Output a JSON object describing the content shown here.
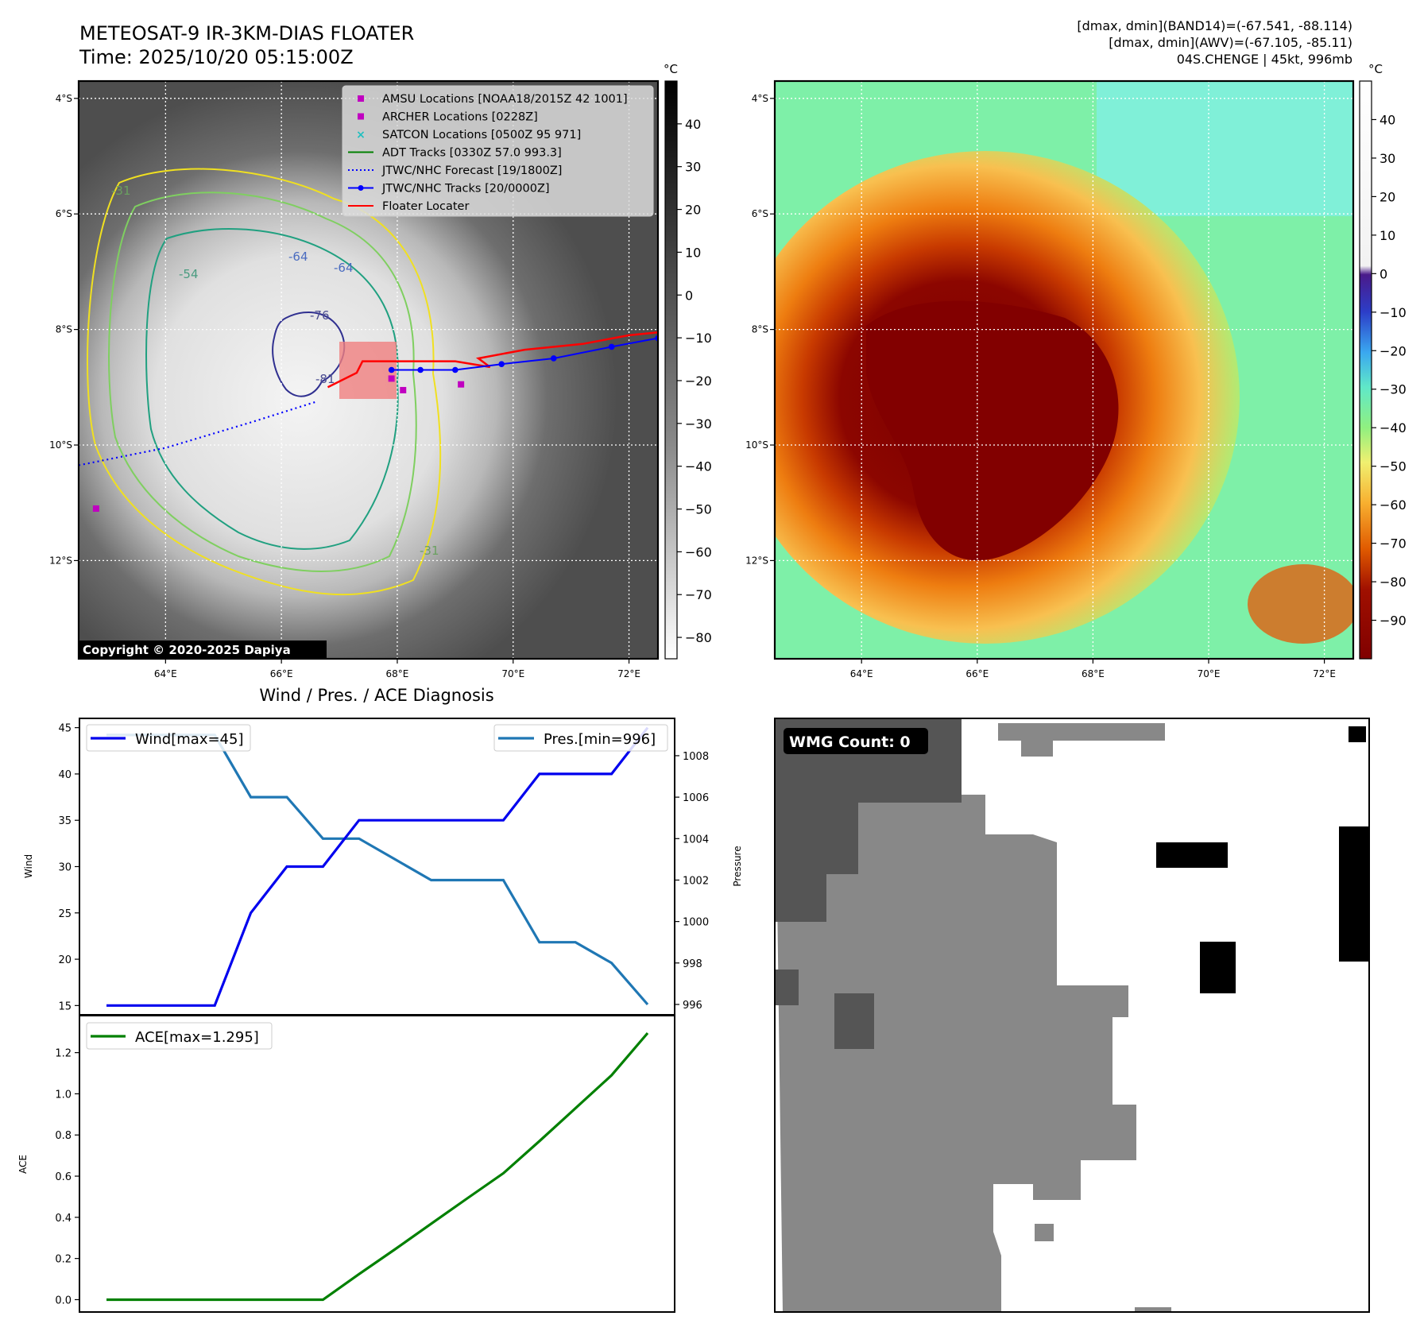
{
  "header": {
    "title_line1": "METEOSAT-9 IR-3KM-DIAS FLOATER",
    "title_line2": "Time: 2025/10/20 05:15:00Z",
    "right_line1": "[dmax, dmin](BAND14)=(-67.541, -88.114)",
    "right_line2": "[dmax, dmin](AWV)=(-67.105, -85.11)",
    "right_line3": "04S.CHENGE | 45kt, 996mb"
  },
  "map": {
    "lat_ticks": [
      "4°S",
      "6°S",
      "8°S",
      "10°S",
      "12°S"
    ],
    "lat_values": [
      -4,
      -6,
      -8,
      -10,
      -12
    ],
    "lon_ticks": [
      "64°E",
      "66°E",
      "68°E",
      "70°E",
      "72°E"
    ],
    "lon_values": [
      64,
      66,
      68,
      70,
      72
    ],
    "lon_range": [
      62.5,
      72.5
    ],
    "lat_range": [
      -13.7,
      -3.7
    ],
    "copyright": "Copyright © 2020-2025 Dapiya",
    "unit": "°C"
  },
  "legend": {
    "items": [
      {
        "label": "AMSU Locations [NOAA18/2015Z 42 1001]",
        "marker": "square",
        "color": "#c000c0"
      },
      {
        "label": "ARCHER Locations [0228Z]",
        "marker": "square",
        "color": "#c000c0"
      },
      {
        "label": "SATCON Locations [0500Z 95 971]",
        "marker": "x",
        "color": "#20c0c0"
      },
      {
        "label": "ADT Tracks [0330Z 57.0 993.3]",
        "marker": "line",
        "color": "#008000"
      },
      {
        "label": "JTWC/NHC Forecast [19/1800Z]",
        "marker": "dotted",
        "color": "#0000ff"
      },
      {
        "label": "JTWC/NHC Tracks [20/0000Z]",
        "marker": "line-dot",
        "color": "#0000ff"
      },
      {
        "label": "Floater Locater",
        "marker": "line",
        "color": "#ff0000"
      }
    ]
  },
  "contour_labels": [
    "-64",
    "-64",
    "-54",
    "-76",
    "-81",
    "-31",
    "-31"
  ],
  "colorbar_ir": {
    "unit": "°C",
    "ticks": [
      "40",
      "30",
      "20",
      "10",
      "0",
      "−10",
      "−20",
      "−30",
      "−40",
      "−50",
      "−60",
      "−70",
      "−80"
    ],
    "tick_values": [
      40,
      30,
      20,
      10,
      0,
      -10,
      -20,
      -30,
      -40,
      -50,
      -60,
      -70,
      -80
    ],
    "range": [
      -85,
      50
    ]
  },
  "colorbar_awv": {
    "unit": "°C",
    "ticks": [
      "40",
      "30",
      "20",
      "10",
      "0",
      "−10",
      "−20",
      "−30",
      "−40",
      "−50",
      "−60",
      "−70",
      "−80",
      "−90"
    ],
    "tick_values": [
      40,
      30,
      20,
      10,
      0,
      -10,
      -20,
      -30,
      -40,
      -50,
      -60,
      -70,
      -80,
      -90
    ],
    "range": [
      -100,
      50
    ]
  },
  "tracks": {
    "jtwc_forecast": [
      [
        62.5,
        -10.35
      ],
      [
        64.0,
        -10.05
      ],
      [
        65.5,
        -9.6
      ],
      [
        66.6,
        -9.25
      ]
    ],
    "jtwc_track": [
      [
        67.9,
        -8.7
      ],
      [
        68.4,
        -8.7
      ],
      [
        69.0,
        -8.7
      ],
      [
        69.8,
        -8.6
      ],
      [
        70.7,
        -8.5
      ],
      [
        71.7,
        -8.3
      ],
      [
        72.5,
        -8.15
      ]
    ],
    "floater": [
      [
        66.8,
        -9.0
      ],
      [
        67.3,
        -8.75
      ],
      [
        67.4,
        -8.55
      ],
      [
        68.2,
        -8.55
      ],
      [
        69.0,
        -8.55
      ],
      [
        69.6,
        -8.65
      ],
      [
        69.4,
        -8.5
      ],
      [
        70.2,
        -8.35
      ],
      [
        71.2,
        -8.25
      ],
      [
        72.0,
        -8.1
      ],
      [
        72.5,
        -8.05
      ]
    ],
    "amsu": [
      [
        62.8,
        -11.1
      ]
    ],
    "archer": [
      [
        67.9,
        -8.85
      ],
      [
        68.1,
        -9.05
      ],
      [
        69.1,
        -8.95
      ]
    ]
  },
  "chart_data": [
    {
      "type": "line",
      "title": "Wind / Pres. / ACE Diagnosis",
      "ylabel": "Wind",
      "y2label": "Pressure",
      "x": [
        0,
        1,
        2,
        3,
        4,
        5,
        6,
        7,
        8,
        9,
        10,
        11,
        12,
        13,
        14,
        15
      ],
      "xlim": [
        -0.75,
        15.75
      ],
      "ylim": [
        14,
        46
      ],
      "y2lim": [
        995.5,
        1009.8
      ],
      "yticks": [
        15,
        20,
        25,
        30,
        35,
        40,
        45
      ],
      "y2ticks": [
        996,
        998,
        1000,
        1002,
        1004,
        1006,
        1008
      ],
      "series": [
        {
          "name": "Wind[max=45]",
          "axis": "left",
          "color": "#0000ee",
          "values": [
            15,
            15,
            15,
            15,
            25,
            30,
            30,
            35,
            35,
            35,
            35,
            35,
            40,
            40,
            40,
            45
          ]
        },
        {
          "name": "Pres.[min=996]",
          "axis": "right",
          "color": "#1f77b4",
          "values": [
            1009,
            1009,
            1009,
            1009,
            1006,
            1006,
            1004,
            1004,
            1003,
            1002,
            1002,
            1002,
            999,
            999,
            998,
            996
          ]
        }
      ]
    },
    {
      "type": "line",
      "ylabel": "ACE",
      "x": [
        0,
        1,
        2,
        3,
        4,
        5,
        6,
        7,
        8,
        9,
        10,
        11,
        12,
        13,
        14,
        15
      ],
      "xlim": [
        -0.75,
        15.75
      ],
      "ylim": [
        -0.06,
        1.38
      ],
      "yticks": [
        0.0,
        0.2,
        0.4,
        0.6,
        0.8,
        1.0,
        1.2
      ],
      "ytick_labels": [
        "0.0",
        "0.2",
        "0.4",
        "0.6",
        "0.8",
        "1.0",
        "1.2"
      ],
      "series": [
        {
          "name": "ACE[max=1.295]",
          "color": "#008000",
          "values": [
            0,
            0,
            0,
            0,
            0,
            0,
            0,
            0.124,
            0.245,
            0.369,
            0.492,
            0.614,
            0.77,
            0.93,
            1.09,
            1.295
          ]
        }
      ]
    }
  ],
  "wmg": {
    "label": "WMG Count: 0"
  }
}
